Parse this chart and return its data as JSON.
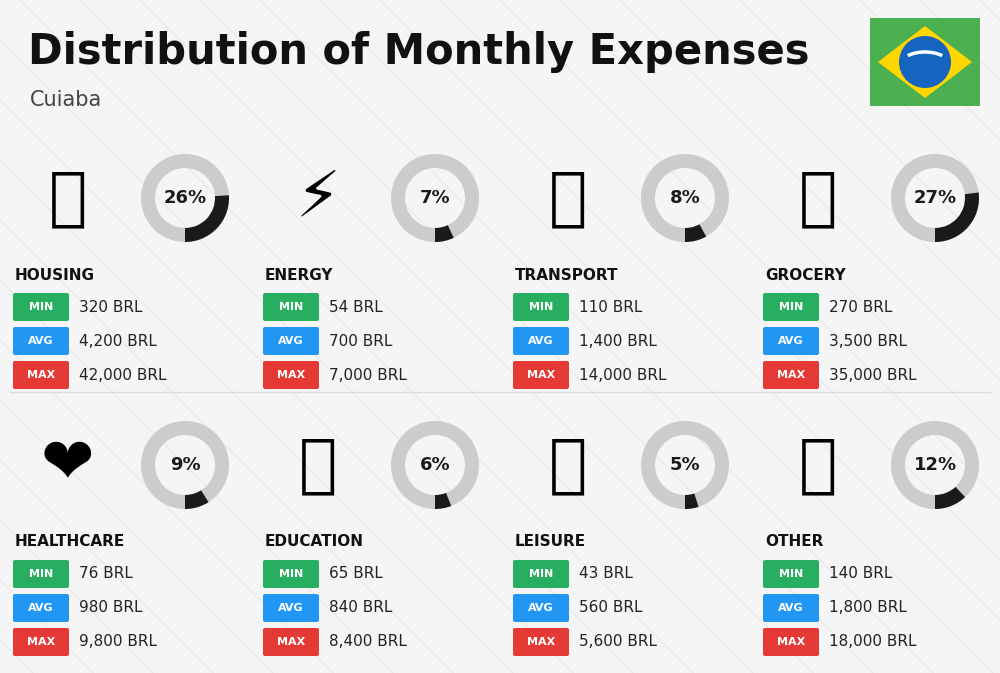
{
  "title": "Distribution of Monthly Expenses",
  "subtitle": "Cuiaba",
  "background_color": "#f5f5f5",
  "panel_color": "#ffffff",
  "categories": [
    {
      "name": "HOUSING",
      "percent": 26,
      "min_val": "320 BRL",
      "avg_val": "4,200 BRL",
      "max_val": "42,000 BRL",
      "icon": "🏙",
      "row": 0,
      "col": 0
    },
    {
      "name": "ENERGY",
      "percent": 7,
      "min_val": "54 BRL",
      "avg_val": "700 BRL",
      "max_val": "7,000 BRL",
      "icon": "⚡",
      "row": 0,
      "col": 1
    },
    {
      "name": "TRANSPORT",
      "percent": 8,
      "min_val": "110 BRL",
      "avg_val": "1,400 BRL",
      "max_val": "14,000 BRL",
      "icon": "🚌",
      "row": 0,
      "col": 2
    },
    {
      "name": "GROCERY",
      "percent": 27,
      "min_val": "270 BRL",
      "avg_val": "3,500 BRL",
      "max_val": "35,000 BRL",
      "icon": "🛒",
      "row": 0,
      "col": 3
    },
    {
      "name": "HEALTHCARE",
      "percent": 9,
      "min_val": "76 BRL",
      "avg_val": "980 BRL",
      "max_val": "9,800 BRL",
      "icon": "❤️",
      "row": 1,
      "col": 0
    },
    {
      "name": "EDUCATION",
      "percent": 6,
      "min_val": "65 BRL",
      "avg_val": "840 BRL",
      "max_val": "8,400 BRL",
      "icon": "🎓",
      "row": 1,
      "col": 1
    },
    {
      "name": "LEISURE",
      "percent": 5,
      "min_val": "43 BRL",
      "avg_val": "560 BRL",
      "max_val": "5,600 BRL",
      "icon": "🛍️",
      "row": 1,
      "col": 2
    },
    {
      "name": "OTHER",
      "percent": 12,
      "min_val": "140 BRL",
      "avg_val": "1,800 BRL",
      "max_val": "18,000 BRL",
      "icon": "💰",
      "row": 1,
      "col": 3
    }
  ],
  "color_min": "#27ae60",
  "color_avg": "#2196F3",
  "color_max": "#e53935",
  "arc_dark": "#1a1a1a",
  "arc_light": "#cccccc",
  "title_color": "#111111",
  "name_color": "#111111",
  "value_color": "#222222"
}
